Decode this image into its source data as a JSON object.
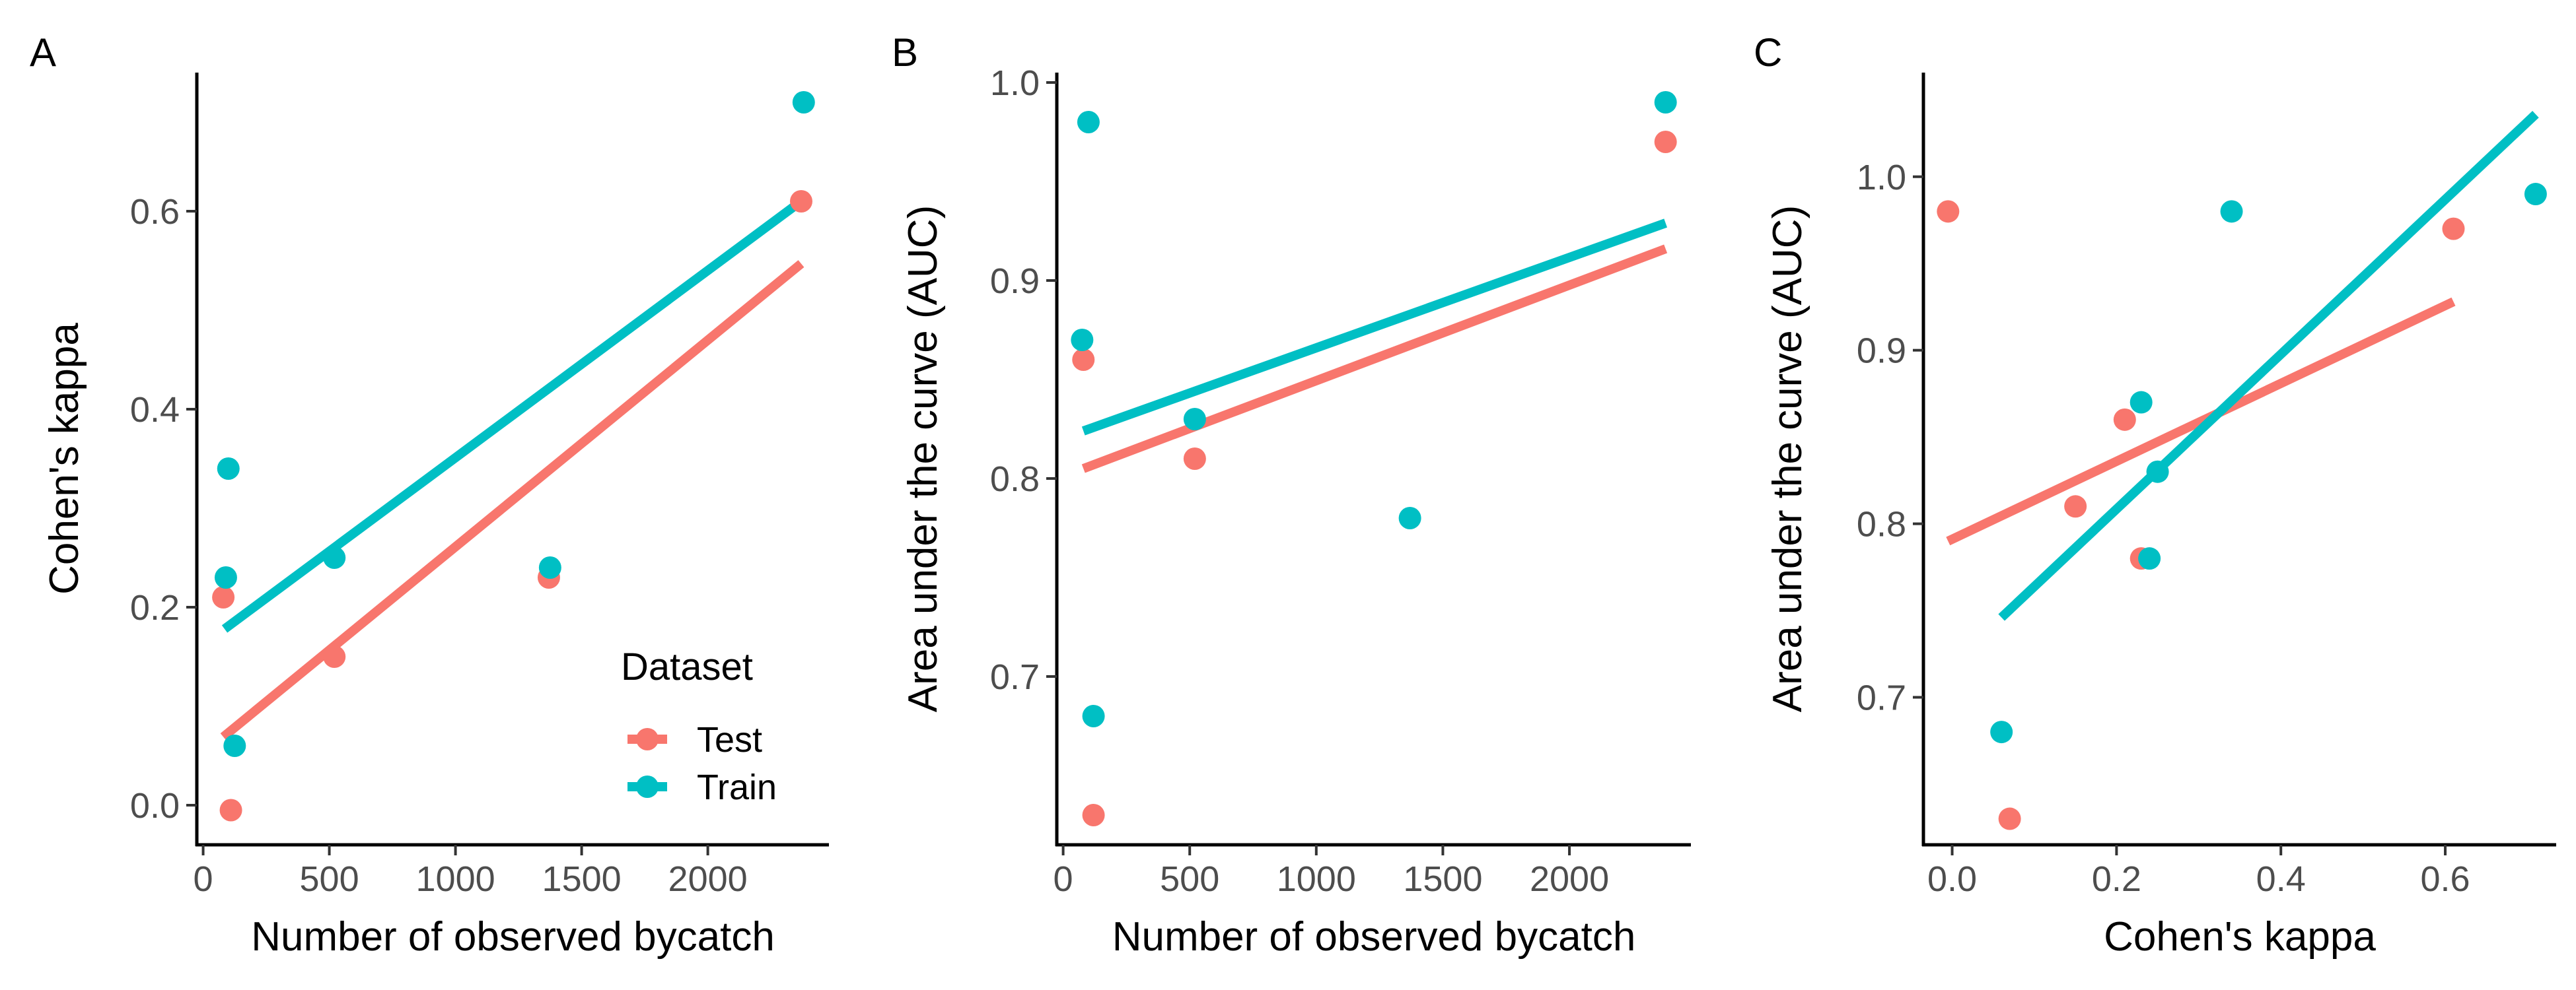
{
  "colors": {
    "Test": "#F8766D",
    "Train": "#00BFC4"
  },
  "legend": {
    "title": "Dataset",
    "items": [
      {
        "label": "Test",
        "color": "#F8766D"
      },
      {
        "label": "Train",
        "color": "#00BFC4"
      }
    ]
  },
  "chart_data": [
    {
      "type": "scatter",
      "panel": "A",
      "xlabel": "Number of observed bycatch",
      "ylabel": "Cohen's kappa",
      "xlim": [
        -25,
        2480
      ],
      "ylim": [
        -0.04,
        0.74
      ],
      "xticks": [
        0,
        500,
        1000,
        1500,
        2000
      ],
      "xtick_labels": [
        "0",
        "500",
        "1000",
        "1500",
        "2000"
      ],
      "yticks": [
        0.0,
        0.2,
        0.4,
        0.6
      ],
      "ytick_labels": [
        "0.0",
        "0.2",
        "0.4",
        "0.6"
      ],
      "legend_position": "bottom-right inside",
      "series": [
        {
          "name": "Test",
          "points": [
            [
              110,
              -0.005
            ],
            [
              80,
              0.21
            ],
            [
              520,
              0.15
            ],
            [
              1370,
              0.23
            ],
            [
              2370,
              0.61
            ]
          ],
          "fit": [
            [
              80,
              0.069
            ],
            [
              2370,
              0.547
            ]
          ]
        },
        {
          "name": "Train",
          "points": [
            [
              125,
              0.06
            ],
            [
              100,
              0.34
            ],
            [
              90,
              0.23
            ],
            [
              520,
              0.25
            ],
            [
              1375,
              0.24
            ],
            [
              2380,
              0.71
            ]
          ],
          "fit": [
            [
              85,
              0.178
            ],
            [
              2380,
              0.612
            ]
          ]
        }
      ]
    },
    {
      "type": "scatter",
      "panel": "B",
      "xlabel": "Number of observed bycatch",
      "ylabel": "Area under the curve (AUC)",
      "xlim": [
        -25,
        2480
      ],
      "ylim": [
        0.615,
        1.005
      ],
      "xticks": [
        0,
        500,
        1000,
        1500,
        2000
      ],
      "xtick_labels": [
        "0",
        "500",
        "1000",
        "1500",
        "2000"
      ],
      "yticks": [
        0.7,
        0.8,
        0.9,
        1.0
      ],
      "ytick_labels": [
        "0.7",
        "0.8",
        "0.9",
        "1.0"
      ],
      "series": [
        {
          "name": "Test",
          "points": [
            [
              120,
              0.63
            ],
            [
              80,
              0.86
            ],
            [
              520,
              0.81
            ],
            [
              2380,
              0.97
            ]
          ],
          "fit": [
            [
              80,
              0.805
            ],
            [
              2380,
              0.916
            ]
          ]
        },
        {
          "name": "Train",
          "points": [
            [
              100,
              0.98
            ],
            [
              75,
              0.87
            ],
            [
              120,
              0.68
            ],
            [
              520,
              0.83
            ],
            [
              1370,
              0.78
            ],
            [
              2380,
              0.99
            ]
          ],
          "fit": [
            [
              80,
              0.824
            ],
            [
              2380,
              0.929
            ]
          ]
        }
      ]
    },
    {
      "type": "scatter",
      "panel": "C",
      "xlabel": "Cohen's kappa",
      "ylabel": "Area under the curve (AUC)",
      "xlim": [
        -0.035,
        0.735
      ],
      "ylim": [
        0.615,
        1.06
      ],
      "xticks": [
        0.0,
        0.2,
        0.4,
        0.6
      ],
      "xtick_labels": [
        "0.0",
        "0.2",
        "0.4",
        "0.6"
      ],
      "yticks": [
        0.7,
        0.8,
        0.9,
        1.0
      ],
      "ytick_labels": [
        "0.7",
        "0.8",
        "0.9",
        "1.0"
      ],
      "series": [
        {
          "name": "Test",
          "points": [
            [
              -0.005,
              0.98
            ],
            [
              0.07,
              0.63
            ],
            [
              0.15,
              0.81
            ],
            [
              0.21,
              0.86
            ],
            [
              0.23,
              0.78
            ],
            [
              0.61,
              0.97
            ]
          ],
          "fit": [
            [
              -0.005,
              0.79
            ],
            [
              0.61,
              0.928
            ]
          ]
        },
        {
          "name": "Train",
          "points": [
            [
              0.06,
              0.68
            ],
            [
              0.23,
              0.87
            ],
            [
              0.24,
              0.78
            ],
            [
              0.25,
              0.83
            ],
            [
              0.34,
              0.98
            ],
            [
              0.71,
              0.99
            ]
          ],
          "fit": [
            [
              0.06,
              0.746
            ],
            [
              0.71,
              1.036
            ]
          ]
        }
      ]
    }
  ]
}
